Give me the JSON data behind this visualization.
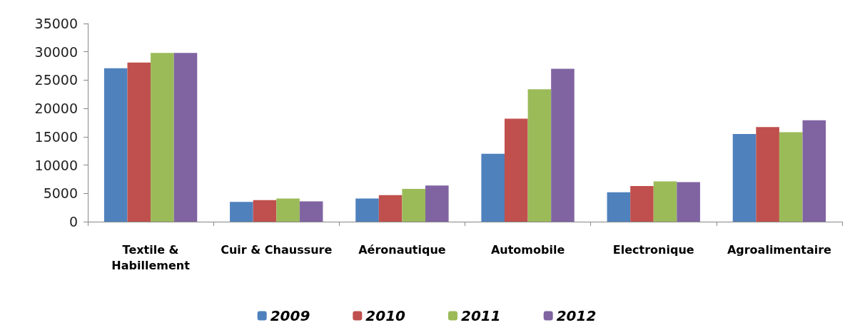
{
  "chart_data": {
    "type": "bar",
    "categories": [
      "Textile & Habillement",
      "Cuir & Chaussure",
      "Aéronautique",
      "Automobile",
      "Electronique",
      "Agroalimentaire"
    ],
    "series": [
      {
        "name": "2009",
        "color": "#4f81bd",
        "values": [
          27100,
          3500,
          4100,
          12000,
          5200,
          15500
        ]
      },
      {
        "name": "2010",
        "color": "#c0504d",
        "values": [
          28100,
          3800,
          4700,
          18200,
          6300,
          16700
        ]
      },
      {
        "name": "2011",
        "color": "#9bbb59",
        "values": [
          29800,
          4100,
          5800,
          23400,
          7100,
          15800
        ]
      },
      {
        "name": "2012",
        "color": "#8064a2",
        "values": [
          29800,
          3600,
          6400,
          27000,
          7000,
          17900
        ]
      }
    ],
    "ylim": [
      0,
      35000
    ],
    "yticks": [
      0,
      5000,
      10000,
      15000,
      20000,
      25000,
      30000,
      35000
    ],
    "grid": false,
    "legend": "bottom"
  }
}
